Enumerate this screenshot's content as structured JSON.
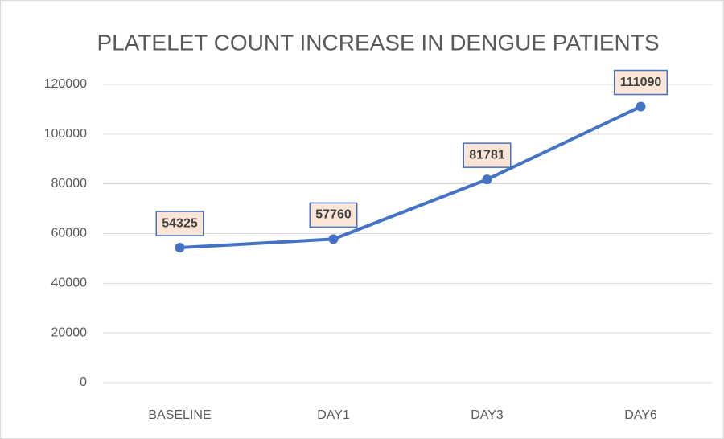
{
  "chart_data": {
    "type": "line",
    "title": "PLATELET COUNT INCREASE IN DENGUE PATIENTS",
    "categories": [
      "BASELINE",
      "DAY1",
      "DAY3",
      "DAY6"
    ],
    "values": [
      54325,
      57760,
      81781,
      111090
    ],
    "color": "#4472c4",
    "ylim": [
      0,
      120000
    ],
    "yticks": [
      0,
      20000,
      40000,
      60000,
      80000,
      100000,
      120000
    ],
    "grid": true
  }
}
